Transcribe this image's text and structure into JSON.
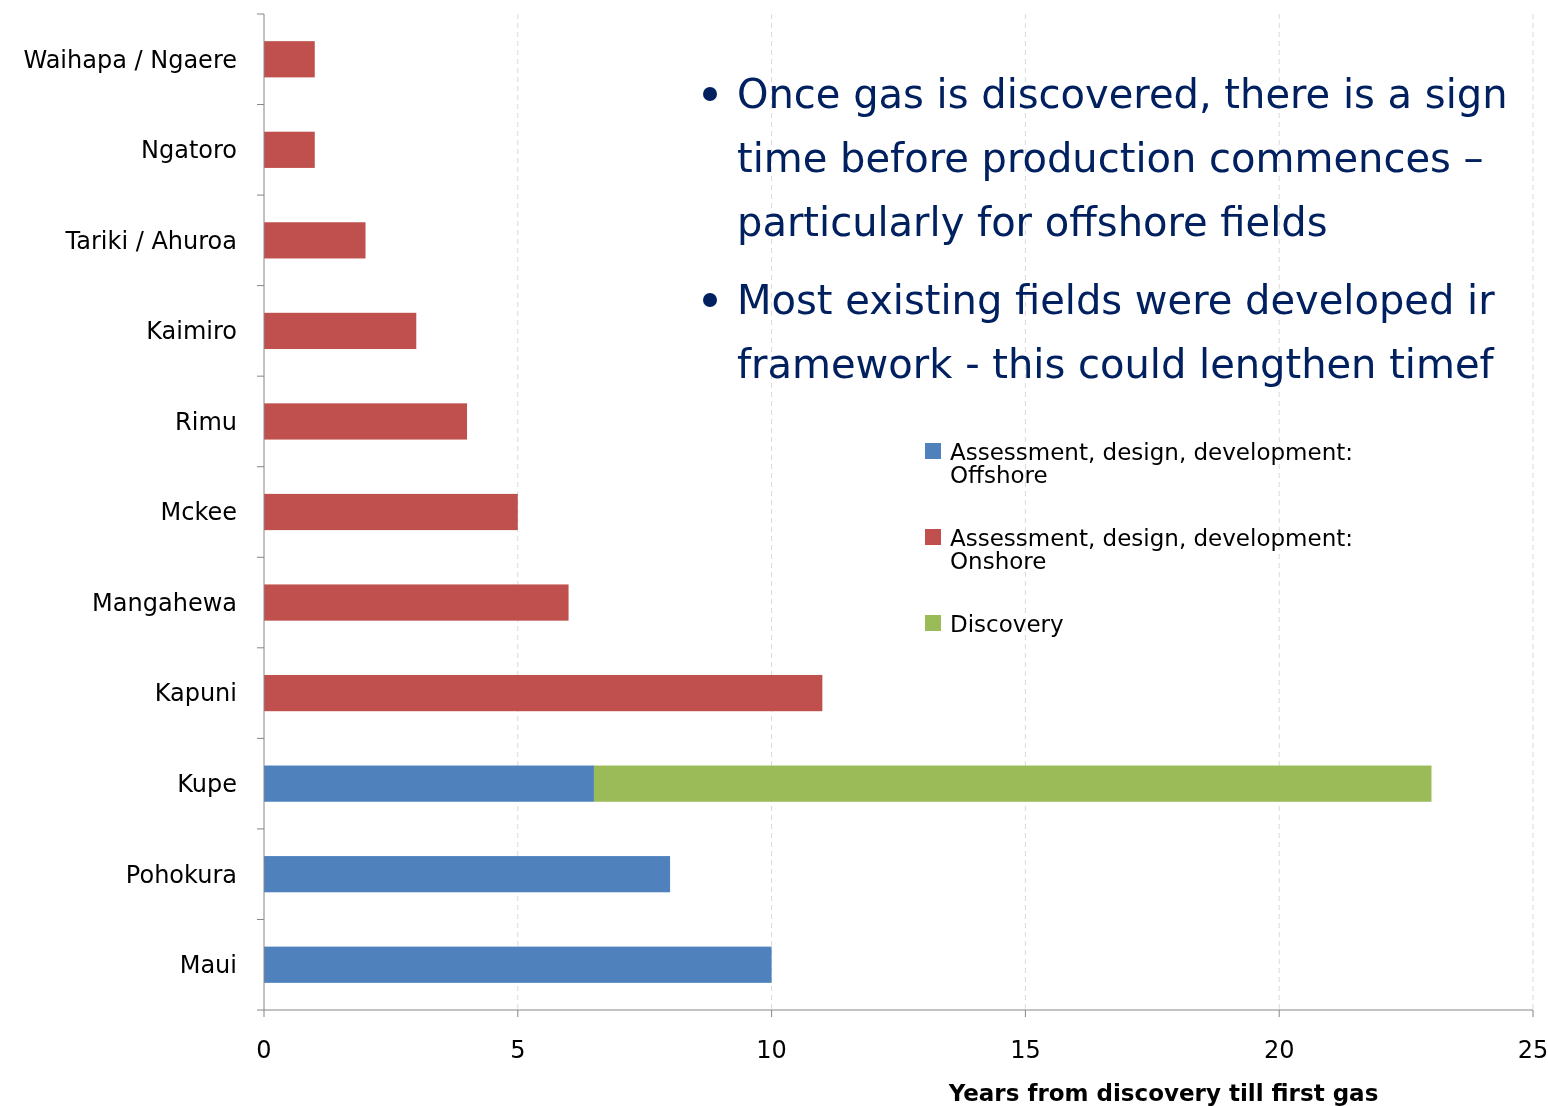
{
  "chart_data": {
    "type": "bar",
    "orientation": "horizontal",
    "stacked": true,
    "categories": [
      "Waihapa / Ngaere",
      "Ngatoro",
      "Tariki / Ahuroa",
      "Kaimiro",
      "Rimu",
      "Mckee",
      "Mangahewa",
      "Kapuni",
      "Kupe",
      "Pohokura",
      "Maui"
    ],
    "series": [
      {
        "name": "Assessment, design, development: Offshore",
        "color": "#4f81bd",
        "values": [
          null,
          null,
          null,
          null,
          null,
          null,
          null,
          null,
          6.5,
          8,
          10
        ]
      },
      {
        "name": "Assessment, design, development: Onshore",
        "color": "#c0504d",
        "values": [
          1,
          1,
          2,
          3,
          4,
          5,
          6,
          11,
          null,
          null,
          null
        ]
      },
      {
        "name": "Discovery",
        "color": "#9bbb59",
        "values": [
          null,
          null,
          null,
          null,
          null,
          null,
          null,
          null,
          16.5,
          null,
          null
        ]
      }
    ],
    "xlim": [
      0,
      25
    ],
    "xticks": [
      0,
      5,
      10,
      15,
      20,
      25
    ],
    "xlabel": "Years from discovery till first gas",
    "grid": "x",
    "legend": "right",
    "annotations": [
      "Once gas is discovered, there is a sign\ntime before production commences –\nparticularly for offshore fields",
      "Most existing fields were developed ir\nframework - this could lengthen timef"
    ]
  }
}
